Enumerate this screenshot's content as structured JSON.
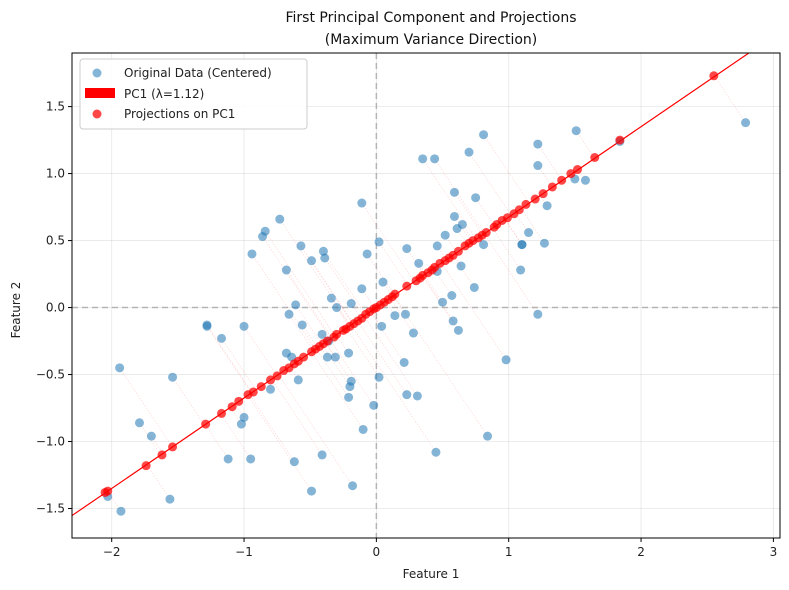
{
  "chart_data": {
    "type": "scatter",
    "title": "First Principal Component and Projections",
    "subtitle": "(Maximum Variance Direction)",
    "xlabel": "Feature 1",
    "ylabel": "Feature 2",
    "xlim": [
      -2.3,
      3.05
    ],
    "ylim": [
      -1.72,
      1.9
    ],
    "xticks": [
      -2,
      -1,
      0,
      1,
      2,
      3
    ],
    "xtick_labels": [
      "−2",
      "−1",
      "0",
      "1",
      "2",
      "3"
    ],
    "yticks": [
      -1.5,
      -1.0,
      -0.5,
      0.0,
      0.5,
      1.0,
      1.5
    ],
    "ytick_labels": [
      "−1.5",
      "−1.0",
      "−0.5",
      "0.0",
      "0.5",
      "1.0",
      "1.5"
    ],
    "grid": true,
    "legend_position": "top-left",
    "pc1_slope": 0.675,
    "colors": {
      "original": "#1f77b4",
      "pc1": "#ff0000",
      "projection": "#ff0000",
      "zero_line": "#a0a0a0"
    },
    "series": [
      {
        "name": "Original Data (Centered)",
        "kind": "points",
        "points": [
          [
            2.79,
            1.38
          ],
          [
            1.84,
            1.24
          ],
          [
            1.51,
            1.32
          ],
          [
            1.58,
            0.95
          ],
          [
            1.5,
            0.96
          ],
          [
            1.22,
            1.22
          ],
          [
            1.22,
            1.06
          ],
          [
            1.29,
            0.76
          ],
          [
            1.15,
            0.56
          ],
          [
            1.27,
            0.48
          ],
          [
            1.1,
            0.47
          ],
          [
            1.1,
            0.47
          ],
          [
            1.09,
            0.28
          ],
          [
            1.22,
            -0.05
          ],
          [
            0.98,
            -0.39
          ],
          [
            0.81,
            1.29
          ],
          [
            0.7,
            1.16
          ],
          [
            0.75,
            0.82
          ],
          [
            0.59,
            0.86
          ],
          [
            0.59,
            0.68
          ],
          [
            0.65,
            0.62
          ],
          [
            0.61,
            0.59
          ],
          [
            0.52,
            0.54
          ],
          [
            0.81,
            0.47
          ],
          [
            0.46,
            0.46
          ],
          [
            0.64,
            0.31
          ],
          [
            0.46,
            0.27
          ],
          [
            0.74,
            0.15
          ],
          [
            0.57,
            0.09
          ],
          [
            0.5,
            0.04
          ],
          [
            0.58,
            -0.1
          ],
          [
            0.62,
            -0.17
          ],
          [
            0.35,
            1.11
          ],
          [
            0.44,
            1.11
          ],
          [
            0.23,
            0.44
          ],
          [
            0.32,
            0.33
          ],
          [
            0.22,
            -0.05
          ],
          [
            0.28,
            -0.19
          ],
          [
            0.21,
            -0.41
          ],
          [
            0.23,
            -0.65
          ],
          [
            0.31,
            -0.66
          ],
          [
            0.45,
            -1.08
          ],
          [
            0.84,
            -0.96
          ],
          [
            0.02,
            0.49
          ],
          [
            0.05,
            0.19
          ],
          [
            0.04,
            -0.14
          ],
          [
            0.14,
            -0.06
          ],
          [
            0.02,
            -0.52
          ],
          [
            -0.02,
            -0.73
          ],
          [
            -0.11,
            0.78
          ],
          [
            -0.07,
            0.4
          ],
          [
            -0.11,
            0.14
          ],
          [
            -0.19,
            0.03
          ],
          [
            -0.3,
            0.0
          ],
          [
            -0.34,
            0.07
          ],
          [
            -0.21,
            -0.34
          ],
          [
            -0.19,
            -0.55
          ],
          [
            -0.2,
            -0.59
          ],
          [
            -0.21,
            -0.67
          ],
          [
            -0.1,
            -0.91
          ],
          [
            -0.18,
            -1.33
          ],
          [
            -0.4,
            0.42
          ],
          [
            -0.39,
            0.37
          ],
          [
            -0.49,
            0.35
          ],
          [
            -0.57,
            0.46
          ],
          [
            -0.61,
            0.02
          ],
          [
            -0.66,
            -0.05
          ],
          [
            -0.56,
            -0.13
          ],
          [
            -0.41,
            -0.2
          ],
          [
            -0.36,
            -0.25
          ],
          [
            -0.37,
            -0.37
          ],
          [
            -0.31,
            -0.37
          ],
          [
            -0.68,
            -0.34
          ],
          [
            -0.64,
            -0.37
          ],
          [
            -0.59,
            -0.54
          ],
          [
            -0.41,
            -1.1
          ],
          [
            -0.49,
            -1.37
          ],
          [
            -0.62,
            -1.15
          ],
          [
            -0.73,
            0.66
          ],
          [
            -0.84,
            0.57
          ],
          [
            -0.86,
            0.53
          ],
          [
            -0.68,
            0.28
          ],
          [
            -0.94,
            0.4
          ],
          [
            -1.0,
            -0.14
          ],
          [
            -0.8,
            -0.61
          ],
          [
            -1.0,
            -0.82
          ],
          [
            -1.02,
            -0.87
          ],
          [
            -0.95,
            -1.13
          ],
          [
            -1.12,
            -1.13
          ],
          [
            -1.28,
            -0.13
          ],
          [
            -1.17,
            -0.23
          ],
          [
            -1.54,
            -0.52
          ],
          [
            -1.94,
            -0.45
          ],
          [
            -1.79,
            -0.86
          ],
          [
            -1.7,
            -0.96
          ],
          [
            -1.56,
            -1.43
          ],
          [
            -2.03,
            -1.41
          ],
          [
            -1.93,
            -1.52
          ],
          [
            -1.28,
            -0.14
          ]
        ]
      },
      {
        "name": "PC1 (λ=1.12)",
        "kind": "line"
      },
      {
        "name": "Projections on PC1",
        "kind": "points",
        "points": [
          [
            2.55,
            1.73
          ],
          [
            1.84,
            1.25
          ],
          [
            1.65,
            1.12
          ],
          [
            1.52,
            1.03
          ],
          [
            1.47,
            1.0
          ],
          [
            1.4,
            0.95
          ],
          [
            1.33,
            0.9
          ],
          [
            1.26,
            0.85
          ],
          [
            1.2,
            0.81
          ],
          [
            1.13,
            0.77
          ],
          [
            1.08,
            0.73
          ],
          [
            1.04,
            0.7
          ],
          [
            0.99,
            0.67
          ],
          [
            0.95,
            0.65
          ],
          [
            0.91,
            0.62
          ],
          [
            0.89,
            0.6
          ],
          [
            0.83,
            0.56
          ],
          [
            0.8,
            0.54
          ],
          [
            0.77,
            0.52
          ],
          [
            0.73,
            0.5
          ],
          [
            0.7,
            0.48
          ],
          [
            0.67,
            0.46
          ],
          [
            0.62,
            0.42
          ],
          [
            0.58,
            0.39
          ],
          [
            0.55,
            0.37
          ],
          [
            0.52,
            0.35
          ],
          [
            0.48,
            0.33
          ],
          [
            0.44,
            0.3
          ],
          [
            0.42,
            0.28
          ],
          [
            0.39,
            0.26
          ],
          [
            0.35,
            0.24
          ],
          [
            0.33,
            0.22
          ],
          [
            0.3,
            0.2
          ],
          [
            0.23,
            0.16
          ],
          [
            0.14,
            0.1
          ],
          [
            0.12,
            0.08
          ],
          [
            0.09,
            0.06
          ],
          [
            0.06,
            0.04
          ],
          [
            0.03,
            0.02
          ],
          [
            0.0,
            0.0
          ],
          [
            -0.02,
            -0.01
          ],
          [
            -0.05,
            -0.03
          ],
          [
            -0.08,
            -0.05
          ],
          [
            -0.11,
            -0.08
          ],
          [
            -0.14,
            -0.1
          ],
          [
            -0.17,
            -0.12
          ],
          [
            -0.2,
            -0.14
          ],
          [
            -0.23,
            -0.16
          ],
          [
            -0.25,
            -0.17
          ],
          [
            -0.3,
            -0.2
          ],
          [
            -0.32,
            -0.22
          ],
          [
            -0.37,
            -0.25
          ],
          [
            -0.4,
            -0.27
          ],
          [
            -0.43,
            -0.29
          ],
          [
            -0.46,
            -0.31
          ],
          [
            -0.49,
            -0.33
          ],
          [
            -0.55,
            -0.37
          ],
          [
            -0.59,
            -0.4
          ],
          [
            -0.62,
            -0.42
          ],
          [
            -0.66,
            -0.45
          ],
          [
            -0.7,
            -0.47
          ],
          [
            -0.75,
            -0.51
          ],
          [
            -0.8,
            -0.54
          ],
          [
            -0.87,
            -0.59
          ],
          [
            -0.93,
            -0.63
          ],
          [
            -0.97,
            -0.65
          ],
          [
            -1.04,
            -0.7
          ],
          [
            -1.09,
            -0.74
          ],
          [
            -1.17,
            -0.79
          ],
          [
            -1.29,
            -0.87
          ],
          [
            -1.54,
            -1.04
          ],
          [
            -1.62,
            -1.1
          ],
          [
            -1.74,
            -1.18
          ],
          [
            -2.03,
            -1.37
          ],
          [
            -2.05,
            -1.38
          ]
        ]
      }
    ]
  }
}
